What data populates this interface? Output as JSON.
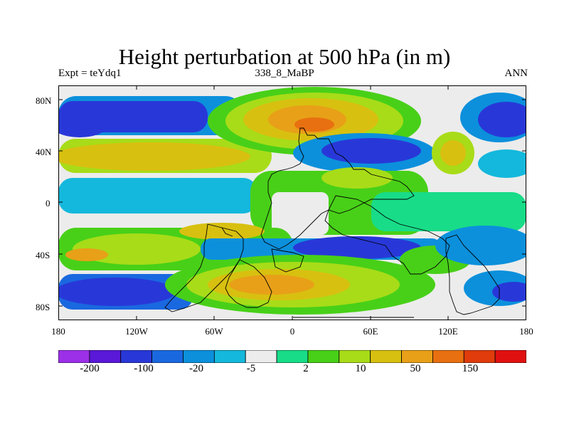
{
  "title": "Height perturbation at 500 hPa (in m)",
  "subtitle_left": "Expt = teYdq1",
  "subtitle_center": "338_8_MaBP",
  "subtitle_right": "ANN",
  "lat_labels": [
    "80N",
    "40N",
    "0",
    "40S",
    "80S"
  ],
  "lon_labels": [
    "180",
    "120W",
    "60W",
    "0",
    "60E",
    "120E",
    "180"
  ],
  "colorbar": {
    "labels": [
      "-200",
      "-100",
      "-20",
      "-5",
      "2",
      "10",
      "50",
      "150"
    ],
    "colors": [
      "#9b30e8",
      "#5a18d8",
      "#2838d8",
      "#1a68e0",
      "#0c90dc",
      "#14b8dc",
      "#ececec",
      "#18dc88",
      "#48d018",
      "#a8dc18",
      "#d8c010",
      "#e8a018",
      "#e87010",
      "#e03c0c",
      "#e01010"
    ]
  }
}
